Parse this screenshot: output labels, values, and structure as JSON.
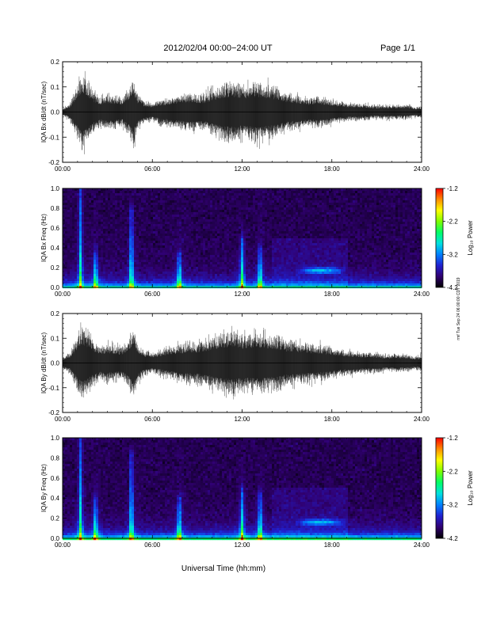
{
  "header": {
    "date_range": "2012/02/04  00:00−24:00 UT",
    "page": "Page 1/1"
  },
  "x_axis_label": "Universal Time (hh:mm)",
  "side_stamp": "rmf Tue Sep 24 06:00:00 CDT 2019",
  "colorbar": {
    "label": "Log₁₀ Power",
    "ticks": [
      "-1.2",
      "-2.2",
      "-3.2",
      "-4.2"
    ],
    "colors": [
      "#ff0000",
      "#ff8c00",
      "#ffff00",
      "#7fff00",
      "#00ff66",
      "#00e0e0",
      "#0080ff",
      "#2020d0",
      "#300070",
      "#000000"
    ]
  },
  "chart_data": [
    {
      "type": "line",
      "title": "",
      "xlabel": "",
      "ylabel": "IQA Bx dB/dt (nT/sec)",
      "xlim": [
        "00:00",
        "24:00"
      ],
      "ylim": [
        -0.2,
        0.2
      ],
      "x_ticks": [
        "00:00",
        "06:00",
        "12:00",
        "18:00",
        "24:00"
      ],
      "y_ticks": [
        "0.2",
        "0.1",
        "0.0",
        "-0.1",
        "-0.2"
      ],
      "series": [
        {
          "hours": [
            0,
            0.5,
            1,
            1.25,
            1.5,
            2,
            2.5,
            3,
            3.5,
            4,
            4.5,
            4.75,
            5,
            5.5,
            6,
            6.5,
            7,
            7.5,
            8,
            8.5,
            9,
            9.5,
            10,
            10.5,
            11,
            11.5,
            12,
            12.5,
            13,
            13.5,
            14,
            14.5,
            15,
            15.5,
            16,
            16.5,
            17,
            17.5,
            18,
            18.5,
            19,
            19.5,
            20,
            20.5,
            21,
            21.5,
            22,
            22.5,
            23,
            23.5,
            24
          ],
          "amplitude": [
            0.02,
            0.05,
            0.15,
            0.2,
            0.2,
            0.12,
            0.08,
            0.1,
            0.09,
            0.08,
            0.15,
            0.2,
            0.1,
            0.06,
            0.05,
            0.07,
            0.08,
            0.09,
            0.1,
            0.11,
            0.1,
            0.1,
            0.13,
            0.15,
            0.16,
            0.17,
            0.15,
            0.16,
            0.17,
            0.16,
            0.15,
            0.13,
            0.11,
            0.1,
            0.09,
            0.08,
            0.09,
            0.08,
            0.07,
            0.06,
            0.05,
            0.05,
            0.05,
            0.04,
            0.04,
            0.04,
            0.04,
            0.04,
            0.04,
            0.03,
            0.03
          ]
        }
      ]
    },
    {
      "type": "heatmap",
      "title": "",
      "xlabel": "",
      "ylabel": "IQA Bx Freq (Hz)",
      "xlim": [
        "00:00",
        "24:00"
      ],
      "ylim": [
        0.0,
        1.0
      ],
      "x_ticks": [
        "00:00",
        "06:00",
        "12:00",
        "18:00",
        "24:00"
      ],
      "y_ticks": [
        "1.0",
        "0.8",
        "0.6",
        "0.4",
        "0.2",
        "0.0"
      ],
      "value_range": [
        -4.2,
        -1.2
      ],
      "features": [
        {
          "kind": "broadband burst",
          "hour": 1.2,
          "top_freq_hz": 1.0
        },
        {
          "kind": "broadband burst",
          "hour": 4.6,
          "top_freq_hz": 0.8
        },
        {
          "kind": "broadband burst",
          "hour": 2.2,
          "top_freq_hz": 0.35
        },
        {
          "kind": "broadband burst",
          "hour": 7.8,
          "top_freq_hz": 0.35
        },
        {
          "kind": "broadband burst",
          "hour": 12.0,
          "top_freq_hz": 0.5
        },
        {
          "kind": "broadband burst",
          "hour": 13.2,
          "top_freq_hz": 0.4
        },
        {
          "kind": "narrowband emission",
          "hour_start": 15.5,
          "hour_end": 19.0,
          "freq_hz": 0.17
        }
      ]
    },
    {
      "type": "line",
      "title": "",
      "xlabel": "",
      "ylabel": "IQA By dB/dt (nT/sec)",
      "xlim": [
        "00:00",
        "24:00"
      ],
      "ylim": [
        -0.2,
        0.2
      ],
      "x_ticks": [
        "00:00",
        "06:00",
        "12:00",
        "18:00",
        "24:00"
      ],
      "y_ticks": [
        "0.2",
        "0.1",
        "0.0",
        "-0.1",
        "-0.2"
      ],
      "series": [
        {
          "hours": [
            0,
            0.5,
            1,
            1.25,
            1.5,
            2,
            2.5,
            3,
            3.5,
            4,
            4.5,
            4.75,
            5,
            5.5,
            6,
            6.5,
            7,
            7.5,
            8,
            8.5,
            9,
            9.5,
            10,
            10.5,
            11,
            11.5,
            12,
            12.5,
            13,
            13.5,
            14,
            14.5,
            15,
            15.5,
            16,
            16.5,
            17,
            17.5,
            18,
            18.5,
            19,
            19.5,
            20,
            20.5,
            21,
            21.5,
            22,
            22.5,
            23,
            23.5,
            24
          ],
          "amplitude": [
            0.03,
            0.06,
            0.16,
            0.2,
            0.2,
            0.14,
            0.1,
            0.11,
            0.1,
            0.09,
            0.16,
            0.2,
            0.12,
            0.07,
            0.06,
            0.07,
            0.09,
            0.1,
            0.11,
            0.12,
            0.12,
            0.13,
            0.15,
            0.17,
            0.18,
            0.19,
            0.16,
            0.17,
            0.18,
            0.17,
            0.16,
            0.15,
            0.13,
            0.13,
            0.12,
            0.11,
            0.11,
            0.1,
            0.09,
            0.08,
            0.07,
            0.07,
            0.06,
            0.06,
            0.06,
            0.05,
            0.05,
            0.05,
            0.05,
            0.04,
            0.04
          ]
        }
      ]
    },
    {
      "type": "heatmap",
      "title": "",
      "xlabel": "Universal Time (hh:mm)",
      "ylabel": "IQA By Freq (Hz)",
      "xlim": [
        "00:00",
        "24:00"
      ],
      "ylim": [
        0.0,
        1.0
      ],
      "x_ticks": [
        "00:00",
        "06:00",
        "12:00",
        "18:00",
        "24:00"
      ],
      "y_ticks": [
        "1.0",
        "0.8",
        "0.6",
        "0.4",
        "0.2",
        "0.0"
      ],
      "value_range": [
        -4.2,
        -1.2
      ],
      "features": [
        {
          "kind": "broadband burst",
          "hour": 1.2,
          "top_freq_hz": 1.0
        },
        {
          "kind": "broadband burst",
          "hour": 4.6,
          "top_freq_hz": 0.85
        },
        {
          "kind": "broadband burst",
          "hour": 2.2,
          "top_freq_hz": 0.4
        },
        {
          "kind": "broadband burst",
          "hour": 7.8,
          "top_freq_hz": 0.4
        },
        {
          "kind": "broadband burst",
          "hour": 12.0,
          "top_freq_hz": 0.5
        },
        {
          "kind": "broadband burst",
          "hour": 13.2,
          "top_freq_hz": 0.45
        },
        {
          "kind": "narrowband emission",
          "hour_start": 15.5,
          "hour_end": 19.0,
          "freq_hz": 0.16
        }
      ]
    }
  ]
}
